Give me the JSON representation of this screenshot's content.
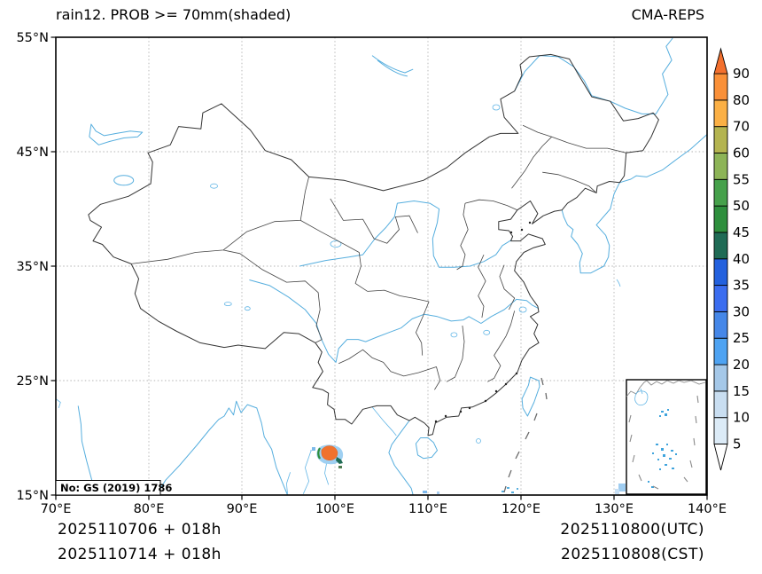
{
  "header": {
    "title": "rain12. PROB >= 70mm(shaded)",
    "model_label": "CMA-REPS"
  },
  "footer": {
    "left_line1": "2025110706  +  018h",
    "left_line2": "2025110714  +  018h",
    "right_line1": "2025110800(UTC)",
    "right_line2": "2025110808(CST)"
  },
  "map": {
    "license_note": "No: GS (2019) 1786",
    "background": "#ffffff",
    "grid_color": "#b3b3b3",
    "national_border_color": "#333333",
    "province_border_color": "#444444",
    "water_color": "#56aede"
  },
  "axes": {
    "lat_ticks": [
      {
        "label": "55°N",
        "lat": 55
      },
      {
        "label": "45°N",
        "lat": 45
      },
      {
        "label": "35°N",
        "lat": 35
      },
      {
        "label": "25°N",
        "lat": 25
      },
      {
        "label": "15°N",
        "lat": 15
      }
    ],
    "lon_ticks": [
      {
        "label": "70°E",
        "lon": 70
      },
      {
        "label": "80°E",
        "lon": 80
      },
      {
        "label": "90°E",
        "lon": 90
      },
      {
        "label": "100°E",
        "lon": 100
      },
      {
        "label": "110°E",
        "lon": 110
      },
      {
        "label": "120°E",
        "lon": 120
      },
      {
        "label": "130°E",
        "lon": 130
      },
      {
        "label": "140°E",
        "lon": 140
      }
    ]
  },
  "colorbar": {
    "tick_labels": [
      "5",
      "10",
      "15",
      "20",
      "25",
      "30",
      "35",
      "40",
      "45",
      "50",
      "55",
      "60",
      "70",
      "80",
      "90"
    ],
    "segment_colors": [
      "#dcebf7",
      "#c9def1",
      "#a5c8e8",
      "#4ea3f2",
      "#4587e8",
      "#3b6df0",
      "#2361de",
      "#1f6b55",
      "#2e8f3d",
      "#46a14b",
      "#8db457",
      "#b4b450",
      "#fbb045",
      "#fa9038"
    ],
    "over_color": "#f3702e",
    "under_color": "#ffffff"
  },
  "chart_data": {
    "type": "heatmap",
    "title": "rain12. PROB >= 70mm(shaded)",
    "model": "CMA-REPS",
    "x_axis": {
      "ticks": [
        "70°E",
        "80°E",
        "90°E",
        "100°E",
        "110°E",
        "120°E",
        "130°E",
        "140°E"
      ],
      "range_deg_e": [
        70,
        140
      ]
    },
    "y_axis": {
      "ticks": [
        "15°N",
        "25°N",
        "35°N",
        "45°N",
        "55°N"
      ],
      "range_deg_n": [
        15,
        55
      ]
    },
    "probability_levels_percent": [
      5,
      10,
      15,
      20,
      25,
      30,
      35,
      40,
      45,
      50,
      55,
      60,
      70,
      80,
      90
    ],
    "shaded_features": [
      {
        "center_lon_e": 99.5,
        "center_lat_n": 18.3,
        "peak_band_percent": "80-90",
        "extent_deg": 1.5
      }
    ]
  }
}
